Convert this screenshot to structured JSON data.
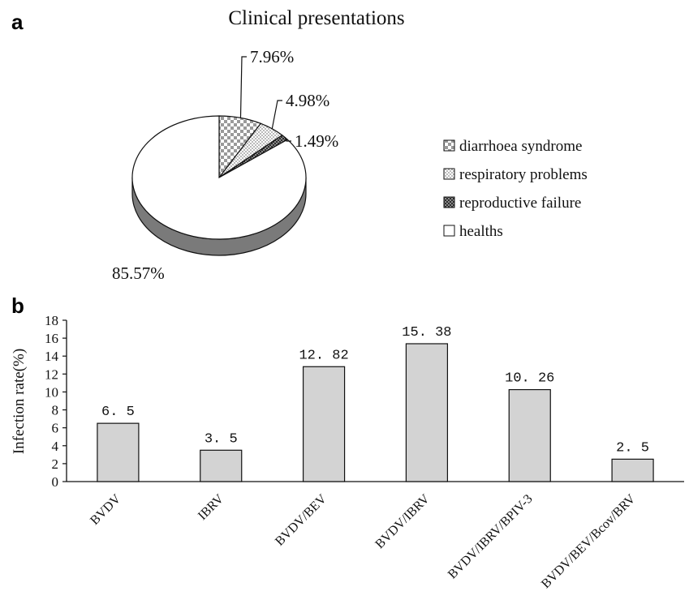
{
  "chart_data": [
    {
      "type": "pie",
      "panel_label": "a",
      "title": "Clinical presentations",
      "slices": [
        {
          "label": "diarrhoea syndrome",
          "value": 7.96,
          "value_label": "7.96%",
          "pattern": "checker"
        },
        {
          "label": "respiratory problems",
          "value": 4.98,
          "value_label": "4.98%",
          "pattern": "dots"
        },
        {
          "label": "reproductive failure",
          "value": 1.49,
          "value_label": "1.49%",
          "pattern": "dark"
        },
        {
          "label": "healths",
          "value": 85.57,
          "value_label": "85.57%",
          "pattern": "white"
        }
      ],
      "style": "3d",
      "legend_position": "right",
      "colors": {
        "edge": "#7a7a7a",
        "outline": "#111111",
        "dark": "#3a3a3a"
      }
    },
    {
      "type": "bar",
      "panel_label": "b",
      "categories": [
        "BVDV",
        "IBRV",
        "BVDV/BEV",
        "BVDV/IBRV",
        "BVDV/IBRV/BPIV-3",
        "BVDV/BEV/Bcov/BRV"
      ],
      "values": [
        6.5,
        3.5,
        12.82,
        15.38,
        10.26,
        2.5
      ],
      "value_labels": [
        "6. 5",
        "3. 5",
        "12. 82",
        "15. 38",
        "10. 26",
        "2. 5"
      ],
      "xlabel": "",
      "ylabel": "Infection rate(%)",
      "ylim": [
        0,
        18
      ],
      "yticks": [
        "0",
        "2",
        "4",
        "6",
        "8",
        "10",
        "12",
        "14",
        "16",
        "18"
      ],
      "grid": false,
      "colors": {
        "bar": "#d3d3d3",
        "bar_edge": "#111111"
      }
    }
  ]
}
